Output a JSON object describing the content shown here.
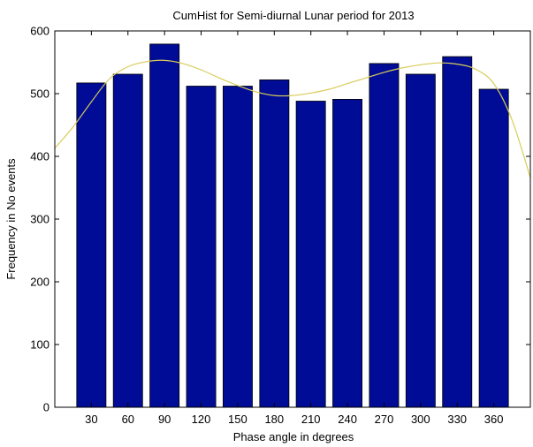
{
  "chart_data": {
    "type": "bar",
    "title": "CumHist for Semi-diurnal Lunar period for 2013",
    "xlabel": "Phase angle in degrees",
    "ylabel": "Frequency in No events",
    "categories": [
      "30",
      "60",
      "90",
      "120",
      "150",
      "180",
      "210",
      "240",
      "270",
      "300",
      "330",
      "360"
    ],
    "x": [
      30,
      60,
      90,
      120,
      150,
      180,
      210,
      240,
      270,
      300,
      330,
      360
    ],
    "values": [
      517,
      531,
      579,
      512,
      512,
      522,
      488,
      491,
      548,
      531,
      559,
      507
    ],
    "xlim": [
      0,
      390
    ],
    "ylim": [
      0,
      600
    ],
    "yticks": [
      0,
      100,
      200,
      300,
      400,
      500,
      600
    ],
    "grid": false,
    "fit_curve": {
      "x": [
        0,
        15,
        30,
        45,
        60,
        75,
        90,
        105,
        120,
        135,
        150,
        165,
        180,
        195,
        210,
        225,
        240,
        255,
        270,
        285,
        300,
        315,
        330,
        345,
        360,
        375,
        390
      ],
      "y": [
        413,
        447,
        487,
        524,
        543,
        551,
        553,
        548,
        538,
        525,
        513,
        503,
        497,
        497,
        501,
        507,
        516,
        525,
        534,
        541,
        546,
        549,
        547,
        539,
        516,
        458,
        366
      ]
    },
    "colors": {
      "bar_fill": "#000c96",
      "bar_edge": "#000000",
      "curve": "#d8cc59",
      "axes": "#000000"
    }
  }
}
